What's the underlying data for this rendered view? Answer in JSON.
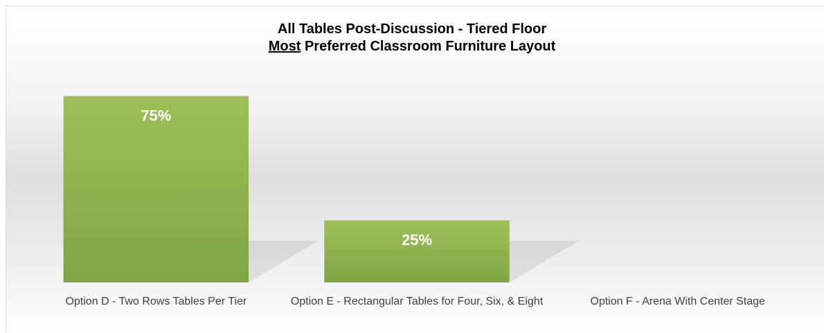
{
  "chart_data": {
    "type": "bar",
    "title": "All Tables Post-Discussion - Tiered Floor",
    "subtitle_emphasis": "Most",
    "subtitle": "Preferred Classroom Furniture Layout",
    "categories": [
      "Option D - Two Rows Tables Per Tier",
      "Option E - Rectangular Tables for Four, Six, & Eight",
      "Option F - Arena With Center Stage"
    ],
    "values": [
      75,
      25,
      0
    ],
    "value_labels": [
      "75%",
      "25%",
      null
    ],
    "color": "#8fb34f",
    "ylim": [
      0,
      100
    ]
  }
}
